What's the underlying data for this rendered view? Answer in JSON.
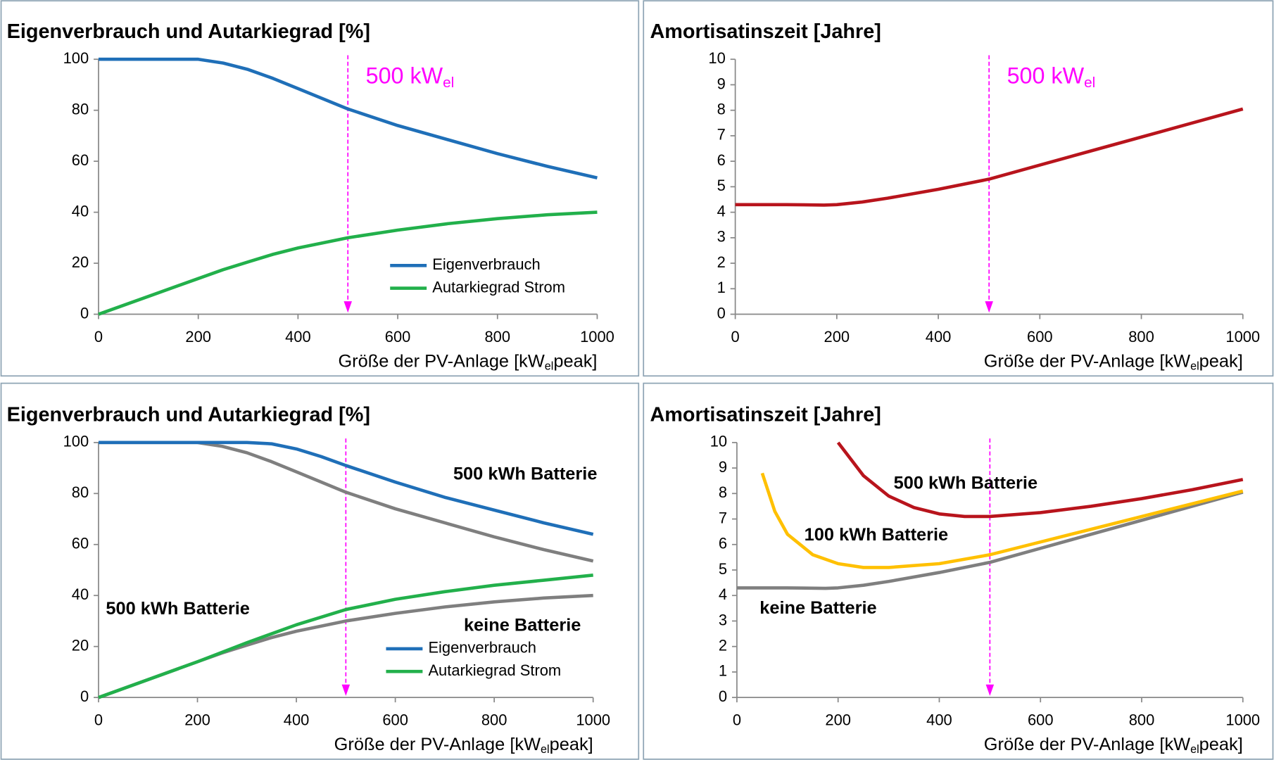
{
  "chart_data": [
    {
      "type": "line",
      "title": "Eigenverbrauch und Autarkiegrad [%]",
      "xlabel": [
        "Größe der PV-Anlage [kW",
        "el",
        "peak]"
      ],
      "xlim": [
        0,
        1000
      ],
      "xticks": [
        0,
        200,
        400,
        600,
        800,
        1000
      ],
      "ylim": [
        0,
        100
      ],
      "yticks": [
        0,
        20,
        40,
        60,
        80,
        100
      ],
      "legend": "lower right",
      "annotations": [
        {
          "x": 500,
          "text": [
            "500 kW",
            "el"
          ],
          "color": "#ff00ff"
        }
      ],
      "series": [
        {
          "name": "Eigenverbrauch",
          "color": "#1f6fb8",
          "x": [
            0,
            100,
            200,
            250,
            300,
            350,
            400,
            450,
            500,
            600,
            700,
            800,
            900,
            1000
          ],
          "values": [
            100,
            100,
            100,
            98.5,
            96,
            92.5,
            88.5,
            84.5,
            80.5,
            74,
            68.5,
            63,
            58,
            53.5
          ]
        },
        {
          "name": "Autarkiegrad Strom",
          "color": "#22b04b",
          "x": [
            0,
            100,
            200,
            250,
            300,
            350,
            400,
            450,
            500,
            600,
            700,
            800,
            900,
            1000
          ],
          "values": [
            0,
            7,
            14,
            17.5,
            20.5,
            23.5,
            26,
            28,
            30,
            33,
            35.5,
            37.5,
            39,
            40
          ]
        }
      ]
    },
    {
      "type": "line",
      "title": "Amortisatinszeit [Jahre]",
      "xlabel": [
        "Größe der PV-Anlage [kW",
        "el",
        "peak]"
      ],
      "xlim": [
        0,
        1000
      ],
      "xticks": [
        0,
        200,
        400,
        600,
        800,
        1000
      ],
      "ylim": [
        0,
        10
      ],
      "yticks": [
        0,
        1,
        2,
        3,
        4,
        5,
        6,
        7,
        8,
        9,
        10
      ],
      "annotations": [
        {
          "x": 500,
          "text": [
            "500 kW",
            "el"
          ],
          "color": "#ff00ff"
        }
      ],
      "series": [
        {
          "color": "#b8141c",
          "x": [
            0,
            100,
            175,
            200,
            250,
            300,
            400,
            500,
            600,
            700,
            800,
            900,
            1000
          ],
          "values": [
            4.3,
            4.3,
            4.28,
            4.3,
            4.4,
            4.55,
            4.9,
            5.3,
            5.85,
            6.4,
            6.95,
            7.5,
            8.05
          ]
        }
      ]
    },
    {
      "type": "line",
      "title": "Eigenverbrauch und Autarkiegrad [%]",
      "xlabel": [
        "Größe der PV-Anlage [kW",
        "el",
        "peak]"
      ],
      "xlim": [
        0,
        1000
      ],
      "xticks": [
        0,
        200,
        400,
        600,
        800,
        1000
      ],
      "ylim": [
        0,
        100
      ],
      "yticks": [
        0,
        20,
        40,
        60,
        80,
        100
      ],
      "legend": "lower right",
      "annotations": [
        {
          "x": 500,
          "color": "#ff00ff"
        }
      ],
      "labels": [
        {
          "text": "500 kWh Batterie",
          "color": "#1f6fb8"
        },
        {
          "text": "500 kWh Batterie",
          "color": "#22b04b"
        },
        {
          "text": "keine Batterie",
          "color": "#7f7f7f"
        }
      ],
      "series": [
        {
          "color": "#7f7f7f",
          "x": [
            0,
            100,
            200,
            250,
            300,
            350,
            400,
            450,
            500,
            600,
            700,
            800,
            900,
            1000
          ],
          "values": [
            100,
            100,
            100,
            98.5,
            96,
            92.5,
            88.5,
            84.5,
            80.5,
            74,
            68.5,
            63,
            58,
            53.5
          ]
        },
        {
          "color": "#7f7f7f",
          "x": [
            0,
            100,
            200,
            250,
            300,
            350,
            400,
            450,
            500,
            600,
            700,
            800,
            900,
            1000
          ],
          "values": [
            0,
            7,
            14,
            17.5,
            20.5,
            23.5,
            26,
            28,
            30,
            33,
            35.5,
            37.5,
            39,
            40
          ]
        },
        {
          "name": "Eigenverbrauch",
          "color": "#1f6fb8",
          "x": [
            0,
            200,
            300,
            350,
            400,
            450,
            500,
            600,
            700,
            800,
            900,
            1000
          ],
          "values": [
            100,
            100,
            100,
            99.5,
            97.5,
            94.5,
            91,
            84.5,
            78.5,
            73.5,
            68.5,
            64
          ]
        },
        {
          "name": "Autarkiegrad Strom",
          "color": "#22b04b",
          "x": [
            0,
            100,
            200,
            300,
            400,
            500,
            600,
            700,
            800,
            900,
            1000
          ],
          "values": [
            0,
            7,
            14,
            21.5,
            28.5,
            34.5,
            38.5,
            41.5,
            44,
            46,
            48
          ]
        }
      ]
    },
    {
      "type": "line",
      "title": "Amortisatinszeit [Jahre]",
      "xlabel": [
        "Größe der PV-Anlage [kW",
        "el",
        "peak]"
      ],
      "xlim": [
        0,
        1000
      ],
      "xticks": [
        0,
        200,
        400,
        600,
        800,
        1000
      ],
      "ylim": [
        0,
        10
      ],
      "yticks": [
        0,
        1,
        2,
        3,
        4,
        5,
        6,
        7,
        8,
        9,
        10
      ],
      "annotations": [
        {
          "x": 500,
          "color": "#ff00ff"
        }
      ],
      "labels": [
        {
          "text": "500 kWh Batterie",
          "color": "#b8141c"
        },
        {
          "text": "100 kWh Batterie",
          "color": "#ffc000"
        },
        {
          "text": "keine Batterie",
          "color": "#7f7f7f"
        }
      ],
      "series": [
        {
          "color": "#7f7f7f",
          "x": [
            0,
            100,
            175,
            200,
            250,
            300,
            400,
            500,
            600,
            700,
            800,
            900,
            1000
          ],
          "values": [
            4.3,
            4.3,
            4.28,
            4.3,
            4.4,
            4.55,
            4.9,
            5.3,
            5.85,
            6.4,
            6.95,
            7.5,
            8.05
          ]
        },
        {
          "color": "#ffc000",
          "x": [
            50,
            75,
            100,
            150,
            200,
            250,
            300,
            400,
            500,
            600,
            700,
            800,
            900,
            1000
          ],
          "values": [
            8.8,
            7.3,
            6.4,
            5.6,
            5.25,
            5.1,
            5.1,
            5.25,
            5.6,
            6.1,
            6.6,
            7.1,
            7.6,
            8.1
          ]
        },
        {
          "color": "#b8141c",
          "x": [
            200,
            250,
            300,
            350,
            400,
            450,
            500,
            600,
            700,
            800,
            900,
            1000
          ],
          "values": [
            10,
            8.7,
            7.9,
            7.45,
            7.2,
            7.1,
            7.1,
            7.25,
            7.5,
            7.8,
            8.15,
            8.55
          ]
        }
      ]
    }
  ]
}
